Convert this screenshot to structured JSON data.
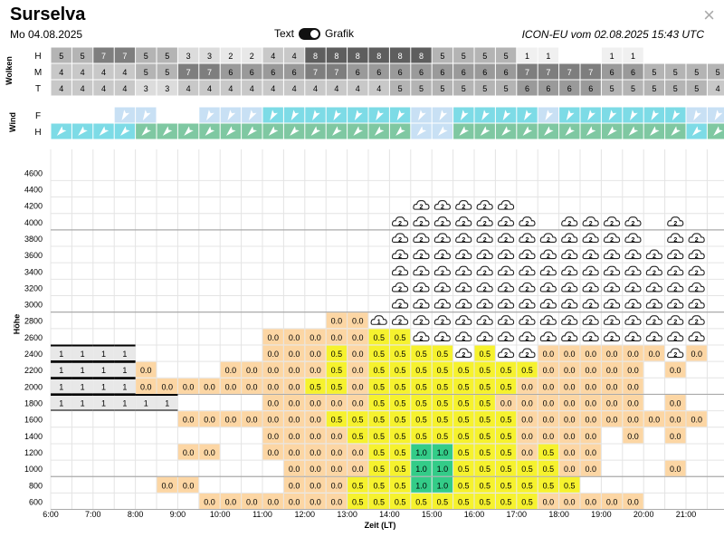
{
  "header": {
    "title": "Surselva",
    "date": "Mo 04.08.2025",
    "toggle_text": "Text",
    "toggle_graphic": "Grafik",
    "model": "ICON-EU vom 02.08.2025 15:43 UTC",
    "close": "×"
  },
  "clouds": {
    "label": "Wolken",
    "rows": [
      {
        "label": "H",
        "values": [
          "5",
          "5",
          "7",
          "7",
          "5",
          "5",
          "3",
          "3",
          "2",
          "2",
          "4",
          "4",
          "8",
          "8",
          "8",
          "8",
          "8",
          "8",
          "5",
          "5",
          "5",
          "5",
          "1",
          "1",
          "",
          "",
          "1",
          "1",
          "",
          "",
          "",
          ""
        ]
      },
      {
        "label": "M",
        "values": [
          "4",
          "4",
          "4",
          "4",
          "5",
          "5",
          "7",
          "7",
          "6",
          "6",
          "6",
          "6",
          "7",
          "7",
          "6",
          "6",
          "6",
          "6",
          "6",
          "6",
          "6",
          "6",
          "7",
          "7",
          "7",
          "7",
          "6",
          "6",
          "5",
          "5",
          "5",
          "5"
        ]
      },
      {
        "label": "T",
        "values": [
          "4",
          "4",
          "4",
          "4",
          "3",
          "3",
          "4",
          "4",
          "4",
          "4",
          "4",
          "4",
          "4",
          "4",
          "4",
          "4",
          "5",
          "5",
          "5",
          "5",
          "5",
          "5",
          "6",
          "6",
          "6",
          "6",
          "5",
          "5",
          "5",
          "5",
          "5",
          "4"
        ]
      }
    ]
  },
  "wind": {
    "label": "Wind",
    "rows": [
      {
        "label": "F",
        "colors": [
          "#ffffff",
          "#ffffff",
          "#ffffff",
          "#c8e0f4",
          "#c8e0f4",
          "#ffffff",
          "#ffffff",
          "#c8e0f4",
          "#c8e0f4",
          "#c8e0f4",
          "#7ddbe6",
          "#7ddbe6",
          "#7ddbe6",
          "#7ddbe6",
          "#7ddbe6",
          "#7ddbe6",
          "#7ddbe6",
          "#c8e0f4",
          "#c8e0f4",
          "#7ddbe6",
          "#7ddbe6",
          "#7ddbe6",
          "#7ddbe6",
          "#c8e0f4",
          "#7ddbe6",
          "#7ddbe6",
          "#7ddbe6",
          "#7ddbe6",
          "#7ddbe6",
          "#7ddbe6",
          "#c8e0f4",
          "#c8e0f4"
        ],
        "arrows": [
          0,
          0,
          0,
          1,
          1,
          0,
          0,
          1,
          1,
          1,
          1,
          1,
          1,
          1,
          1,
          1,
          1,
          1,
          1,
          1,
          1,
          1,
          1,
          1,
          1,
          1,
          1,
          1,
          1,
          1,
          1,
          1
        ]
      },
      {
        "label": "H",
        "colors": [
          "#7ddbe6",
          "#7ddbe6",
          "#7ddbe6",
          "#7ddbe6",
          "#7fc8a2",
          "#7fc8a2",
          "#7fc8a2",
          "#7fc8a2",
          "#7fc8a2",
          "#7fc8a2",
          "#7fc8a2",
          "#7fc8a2",
          "#7fc8a2",
          "#7fc8a2",
          "#7fc8a2",
          "#7fc8a2",
          "#7fc8a2",
          "#c8e0f4",
          "#c8e0f4",
          "#7fc8a2",
          "#7fc8a2",
          "#7fc8a2",
          "#7fc8a2",
          "#7fc8a2",
          "#7fc8a2",
          "#7fc8a2",
          "#7fc8a2",
          "#7fc8a2",
          "#7fc8a2",
          "#7fc8a2",
          "#7ddbe6",
          "#7fc8a2"
        ],
        "arrows": [
          1,
          1,
          1,
          1,
          1,
          1,
          1,
          1,
          1,
          1,
          1,
          1,
          1,
          1,
          1,
          1,
          1,
          1,
          1,
          1,
          1,
          1,
          1,
          1,
          1,
          1,
          1,
          1,
          1,
          1,
          1,
          1
        ]
      }
    ]
  },
  "chart_data": {
    "type": "heatmap",
    "xlabel": "Zeit (LT)",
    "ylabel": "Höhe",
    "x_ticks": [
      "6:00",
      "7:00",
      "8:00",
      "9:00",
      "10:00",
      "11:00",
      "12:00",
      "13:00",
      "14:00",
      "15:00",
      "16:00",
      "17:00",
      "18:00",
      "19:00",
      "20:00",
      "21:00"
    ],
    "y_ticks": [
      "600",
      "800",
      "1000",
      "1200",
      "1400",
      "1600",
      "1800",
      "2000",
      "2200",
      "2400",
      "2600",
      "2800",
      "3000",
      "3200",
      "3400",
      "3600",
      "3800",
      "4000",
      "4200",
      "4400",
      "4600"
    ],
    "legend_colors": {
      "0.0": "#fcd6a4",
      "0.5": "#f6f22e",
      "1.0": "#33cc88",
      "cloud_layer": "#e8e8e8"
    },
    "cloud_layer_label": "1",
    "cloud_icons": [
      "1",
      "2"
    ],
    "rows": [
      {
        "alt": 4200,
        "cells": [
          "",
          "",
          "",
          "",
          "",
          "",
          "",
          "",
          "",
          "",
          "",
          "",
          "",
          "",
          "",
          "",
          "",
          "C2",
          "C2",
          "C2",
          "C2",
          "C2",
          "",
          "",
          "",
          "",
          "",
          "",
          "",
          "",
          "",
          ""
        ]
      },
      {
        "alt": 4000,
        "cells": [
          "",
          "",
          "",
          "",
          "",
          "",
          "",
          "",
          "",
          "",
          "",
          "",
          "",
          "",
          "",
          "",
          "C2",
          "C2",
          "C2",
          "C2",
          "C2",
          "C2",
          "C2",
          "",
          "C2",
          "C2",
          "C2",
          "C2",
          "",
          "C2",
          "",
          ""
        ]
      },
      {
        "alt": 3800,
        "cells": [
          "",
          "",
          "",
          "",
          "",
          "",
          "",
          "",
          "",
          "",
          "",
          "",
          "",
          "",
          "",
          "",
          "C2",
          "C2",
          "C2",
          "C2",
          "C2",
          "C2",
          "C2",
          "C2",
          "C2",
          "C2",
          "C2",
          "C2",
          "",
          "C2",
          "C2",
          ""
        ]
      },
      {
        "alt": 3600,
        "cells": [
          "",
          "",
          "",
          "",
          "",
          "",
          "",
          "",
          "",
          "",
          "",
          "",
          "",
          "",
          "",
          "",
          "C2",
          "C2",
          "C2",
          "C2",
          "C2",
          "C2",
          "C2",
          "C2",
          "C2",
          "C2",
          "C2",
          "C2",
          "C2",
          "C2",
          "C2",
          ""
        ]
      },
      {
        "alt": 3400,
        "cells": [
          "",
          "",
          "",
          "",
          "",
          "",
          "",
          "",
          "",
          "",
          "",
          "",
          "",
          "",
          "",
          "",
          "C2",
          "C2",
          "C2",
          "C2",
          "C2",
          "C2",
          "C2",
          "C2",
          "C2",
          "C2",
          "C2",
          "C2",
          "C2",
          "C2",
          "C2",
          ""
        ]
      },
      {
        "alt": 3200,
        "cells": [
          "",
          "",
          "",
          "",
          "",
          "",
          "",
          "",
          "",
          "",
          "",
          "",
          "",
          "",
          "",
          "",
          "C2",
          "C2",
          "C2",
          "C2",
          "C2",
          "C2",
          "C2",
          "C2",
          "C2",
          "C2",
          "C2",
          "C2",
          "C2",
          "C2",
          "C2",
          ""
        ]
      },
      {
        "alt": 3000,
        "cells": [
          "",
          "",
          "",
          "",
          "",
          "",
          "",
          "",
          "",
          "",
          "",
          "",
          "",
          "",
          "",
          "",
          "C2",
          "C2",
          "C2",
          "C2",
          "C2",
          "C2",
          "C2",
          "C2",
          "C2",
          "C2",
          "C2",
          "C2",
          "C2",
          "C2",
          "C2",
          ""
        ]
      },
      {
        "alt": 2800,
        "cells": [
          "",
          "",
          "",
          "",
          "",
          "",
          "",
          "",
          "",
          "",
          "",
          "",
          "",
          "0.0",
          "0.0",
          "C1",
          "C2",
          "C2",
          "C2",
          "C2",
          "C2",
          "C2",
          "C2",
          "C2",
          "C2",
          "C2",
          "C2",
          "C2",
          "C2",
          "C2",
          "C2",
          ""
        ]
      },
      {
        "alt": 2600,
        "cells": [
          "",
          "",
          "",
          "",
          "",
          "",
          "",
          "",
          "",
          "",
          "0.0",
          "0.0",
          "0.0",
          "0.0",
          "0.0",
          "0.5",
          "0.5",
          "C2",
          "C2",
          "C2",
          "C2",
          "C2",
          "C2",
          "C2",
          "C2",
          "C2",
          "C2",
          "C2",
          "C2",
          "C2",
          "C2",
          ""
        ]
      },
      {
        "alt": 2400,
        "cells": [
          "L",
          "L",
          "L",
          "L",
          "",
          "",
          "",
          "",
          "",
          "",
          "0.0",
          "0.0",
          "0.0",
          "0.5",
          "0.0",
          "0.5",
          "0.5",
          "0.5",
          "0.5",
          "C2",
          "0.5",
          "C2",
          "C2",
          "0.0",
          "0.0",
          "0.0",
          "0.0",
          "0.0",
          "0.0",
          "C2",
          "0.0",
          ""
        ]
      },
      {
        "alt": 2200,
        "cells": [
          "L",
          "L",
          "L",
          "L",
          "0.0",
          "",
          "",
          "",
          "0.0",
          "0.0",
          "0.0",
          "0.0",
          "0.0",
          "0.5",
          "0.0",
          "0.5",
          "0.5",
          "0.5",
          "0.5",
          "0.5",
          "0.5",
          "0.5",
          "0.5",
          "0.0",
          "0.0",
          "0.0",
          "0.0",
          "0.0",
          "",
          "0.0",
          "",
          ""
        ]
      },
      {
        "alt": 2000,
        "cells": [
          "L",
          "L",
          "L",
          "L",
          "0.0",
          "0.0",
          "0.0",
          "0.0",
          "0.0",
          "0.0",
          "0.0",
          "0.0",
          "0.5",
          "0.5",
          "0.0",
          "0.5",
          "0.5",
          "0.5",
          "0.5",
          "0.5",
          "0.5",
          "0.5",
          "0.0",
          "0.0",
          "0.0",
          "0.0",
          "0.0",
          "0.0",
          "",
          "",
          "",
          ""
        ]
      },
      {
        "alt": 1800,
        "cells": [
          "L",
          "L",
          "L",
          "L",
          "L",
          "L",
          "",
          "",
          "",
          "",
          "0.0",
          "0.0",
          "0.0",
          "0.0",
          "0.0",
          "0.5",
          "0.5",
          "0.5",
          "0.5",
          "0.5",
          "0.5",
          "0.0",
          "0.0",
          "0.0",
          "0.0",
          "0.0",
          "0.0",
          "0.0",
          "",
          "0.0",
          "",
          ""
        ]
      },
      {
        "alt": 1600,
        "cells": [
          "",
          "",
          "",
          "",
          "",
          "",
          "0.0",
          "0.0",
          "0.0",
          "0.0",
          "0.0",
          "0.0",
          "0.0",
          "0.5",
          "0.5",
          "0.5",
          "0.5",
          "0.5",
          "0.5",
          "0.5",
          "0.5",
          "0.5",
          "0.0",
          "0.0",
          "0.0",
          "0.0",
          "0.0",
          "0.0",
          "0.0",
          "0.0",
          "0.0",
          ""
        ]
      },
      {
        "alt": 1400,
        "cells": [
          "",
          "",
          "",
          "",
          "",
          "",
          "",
          "",
          "",
          "",
          "0.0",
          "0.0",
          "0.0",
          "0.0",
          "0.5",
          "0.5",
          "0.5",
          "0.5",
          "0.5",
          "0.5",
          "0.5",
          "0.5",
          "0.0",
          "0.0",
          "0.0",
          "0.0",
          "",
          "0.0",
          "",
          "0.0",
          "",
          ""
        ]
      },
      {
        "alt": 1200,
        "cells": [
          "",
          "",
          "",
          "",
          "",
          "",
          "0.0",
          "0.0",
          "",
          "",
          "0.0",
          "0.0",
          "0.0",
          "0.0",
          "0.0",
          "0.5",
          "0.5",
          "1.0",
          "1.0",
          "0.5",
          "0.5",
          "0.5",
          "0.0",
          "0.5",
          "0.0",
          "0.0",
          "",
          "",
          "",
          "",
          "",
          ""
        ]
      },
      {
        "alt": 1000,
        "cells": [
          "",
          "",
          "",
          "",
          "",
          "",
          "",
          "",
          "",
          "",
          "",
          "0.0",
          "0.0",
          "0.0",
          "0.0",
          "0.5",
          "0.5",
          "1.0",
          "1.0",
          "0.5",
          "0.5",
          "0.5",
          "0.5",
          "0.5",
          "0.0",
          "0.0",
          "",
          "",
          "",
          "0.0",
          "",
          ""
        ]
      },
      {
        "alt": 800,
        "cells": [
          "",
          "",
          "",
          "",
          "",
          "0.0",
          "0.0",
          "",
          "",
          "",
          "",
          "0.0",
          "0.0",
          "0.0",
          "0.5",
          "0.5",
          "0.5",
          "1.0",
          "1.0",
          "0.5",
          "0.5",
          "0.5",
          "0.5",
          "0.5",
          "0.5",
          "",
          "",
          "",
          "",
          "",
          "",
          ""
        ]
      },
      {
        "alt": 600,
        "cells": [
          "",
          "",
          "",
          "",
          "",
          "",
          "",
          "0.0",
          "0.0",
          "0.0",
          "0.0",
          "0.0",
          "0.0",
          "0.0",
          "0.5",
          "0.5",
          "0.5",
          "0.5",
          "0.5",
          "0.5",
          "0.5",
          "0.5",
          "0.5",
          "0.0",
          "0.0",
          "0.0",
          "0.0",
          "0.0",
          "",
          "",
          "",
          ""
        ]
      }
    ]
  }
}
